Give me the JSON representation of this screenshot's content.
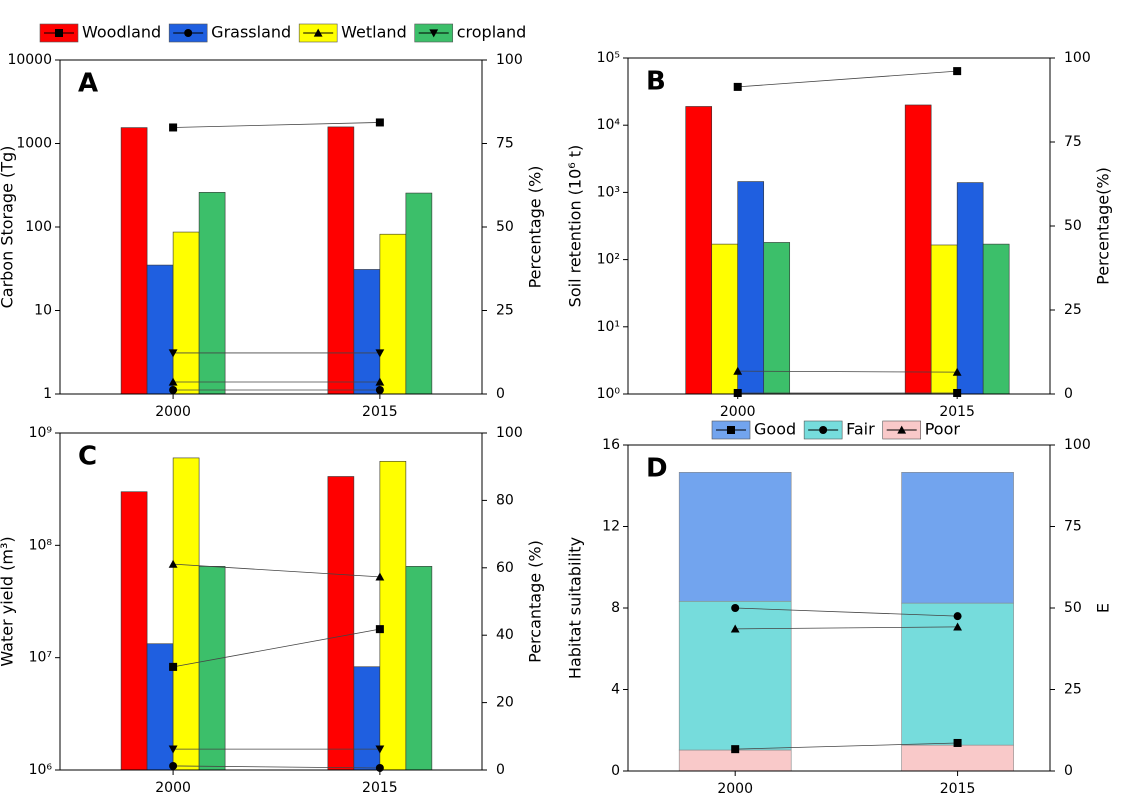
{
  "chart_data": [
    {
      "type": "bar",
      "label": "A",
      "ylabel": "Carbon Storage (Tg)",
      "y2label": "Percentage (%)",
      "categories": [
        "2000",
        "2015"
      ],
      "log_y": true,
      "ylim": [
        1,
        10000
      ],
      "yticks": [
        1,
        10,
        100,
        1000,
        10000
      ],
      "y2lim": [
        0,
        100
      ],
      "y2ticks": [
        0,
        25,
        50,
        75,
        100
      ],
      "series": [
        {
          "name": "Woodland",
          "color": "#ff0000",
          "marker": "square",
          "values": [
            1550,
            1580
          ]
        },
        {
          "name": "Grassland",
          "color": "#1f5fe0",
          "marker": "circle",
          "values": [
            35,
            31
          ]
        },
        {
          "name": "Wetland",
          "color": "#ffff00",
          "marker": "triangle-up",
          "values": [
            87,
            82
          ]
        },
        {
          "name": "cropland",
          "color": "#3cbf6a",
          "marker": "triangle-down",
          "values": [
            260,
            255
          ]
        }
      ],
      "line_series": [
        {
          "marker": "square",
          "axis": "y2",
          "values": [
            79.8,
            81.3
          ]
        },
        {
          "marker": "circle",
          "axis": "y2",
          "values": [
            1.2,
            1.2
          ]
        },
        {
          "marker": "triangle-up",
          "axis": "y2",
          "values": [
            3.6,
            3.6
          ]
        },
        {
          "marker": "triangle-down",
          "axis": "y2",
          "values": [
            12.3,
            12.3
          ]
        }
      ]
    },
    {
      "type": "bar",
      "label": "B",
      "ylabel": "Soil retention (10⁶ t)",
      "y2label": "Percentage(%)",
      "categories": [
        "2000",
        "2015"
      ],
      "log_y": true,
      "ylim": [
        1,
        100000
      ],
      "yticks": [
        {
          "value": 1,
          "label": "10⁰"
        },
        {
          "value": 10,
          "label": "10¹"
        },
        {
          "value": 100,
          "label": "10²"
        },
        {
          "value": 1000,
          "label": "10³"
        },
        {
          "value": 10000,
          "label": "10⁴"
        },
        {
          "value": 100000,
          "label": "10⁵"
        }
      ],
      "y2lim": [
        0,
        100
      ],
      "y2ticks": [
        0,
        25,
        50,
        75,
        100
      ],
      "series": [
        {
          "color": "#ff0000",
          "values": [
            19000,
            20000
          ]
        },
        {
          "color": "#ffff00",
          "values": [
            170,
            165
          ]
        },
        {
          "color": "#1f5fe0",
          "values": [
            1450,
            1400
          ]
        },
        {
          "color": "#3cbf6a",
          "values": [
            180,
            170
          ]
        }
      ],
      "line_series": [
        {
          "marker": "square",
          "axis": "y2",
          "values": [
            91.4,
            96.1
          ]
        },
        {
          "marker": "square",
          "axis": "y2",
          "values": [
            0.3,
            0.3
          ]
        },
        {
          "marker": "triangle-up",
          "axis": "y2",
          "values": [
            6.8,
            6.5
          ]
        }
      ]
    },
    {
      "type": "bar",
      "label": "C",
      "ylabel": "Water yield (m³)",
      "y2label": "Percantage (%)",
      "categories": [
        "2000",
        "2015"
      ],
      "log_y": true,
      "ylim": [
        1000000,
        1000000000
      ],
      "yticks": [
        {
          "value": 1000000,
          "label": "10⁶"
        },
        {
          "value": 10000000,
          "label": "10⁷"
        },
        {
          "value": 100000000,
          "label": "10⁸"
        },
        {
          "value": 1000000000,
          "label": "10⁹"
        }
      ],
      "y2lim": [
        0,
        100
      ],
      "y2ticks": [
        0,
        20,
        40,
        60,
        80,
        100
      ],
      "series": [
        {
          "color": "#ff0000",
          "values": [
            300000000,
            410000000
          ]
        },
        {
          "color": "#1f5fe0",
          "values": [
            13300000,
            8300000
          ]
        },
        {
          "color": "#ffff00",
          "values": [
            600000000,
            560000000
          ]
        },
        {
          "color": "#3cbf6a",
          "values": [
            65000000,
            65000000
          ]
        }
      ],
      "line_series": [
        {
          "marker": "square",
          "axis": "y2",
          "values": [
            30.6,
            41.8
          ]
        },
        {
          "marker": "circle",
          "axis": "y2",
          "values": [
            1.2,
            0.6
          ]
        },
        {
          "marker": "triangle-up",
          "axis": "y2",
          "values": [
            61.1,
            57.3
          ]
        },
        {
          "marker": "triangle-down",
          "axis": "y2",
          "values": [
            6.2,
            6.2
          ]
        }
      ]
    },
    {
      "type": "stacked_bar",
      "label": "D",
      "ylabel": "Habitat suitability",
      "y2label": "E",
      "categories": [
        "2000",
        "2015"
      ],
      "log_y": false,
      "ylim": [
        0,
        16
      ],
      "yticks": [
        0,
        4,
        8,
        12,
        16
      ],
      "y2lim": [
        0,
        100
      ],
      "y2ticks": [
        0,
        25,
        50,
        75,
        100
      ],
      "series": [
        {
          "name": "Poor",
          "color": "#f9c9c9",
          "marker": "triangle-up",
          "values": [
            1.03,
            1.27
          ]
        },
        {
          "name": "Fair",
          "color": "#76dcdc",
          "marker": "circle",
          "values": [
            7.3,
            6.97
          ]
        },
        {
          "name": "Good",
          "color": "#72a4ee",
          "marker": "square",
          "values": [
            6.33,
            6.42
          ]
        }
      ],
      "legend_order": [
        "Good",
        "Fair",
        "Poor"
      ],
      "line_series": [
        {
          "marker": "square",
          "axis": "y2",
          "values": [
            6.7,
            8.6
          ]
        },
        {
          "marker": "circle",
          "axis": "y2",
          "values": [
            50,
            47.5
          ]
        },
        {
          "marker": "triangle-up",
          "axis": "y2",
          "values": [
            43.6,
            44.2
          ]
        }
      ]
    }
  ]
}
